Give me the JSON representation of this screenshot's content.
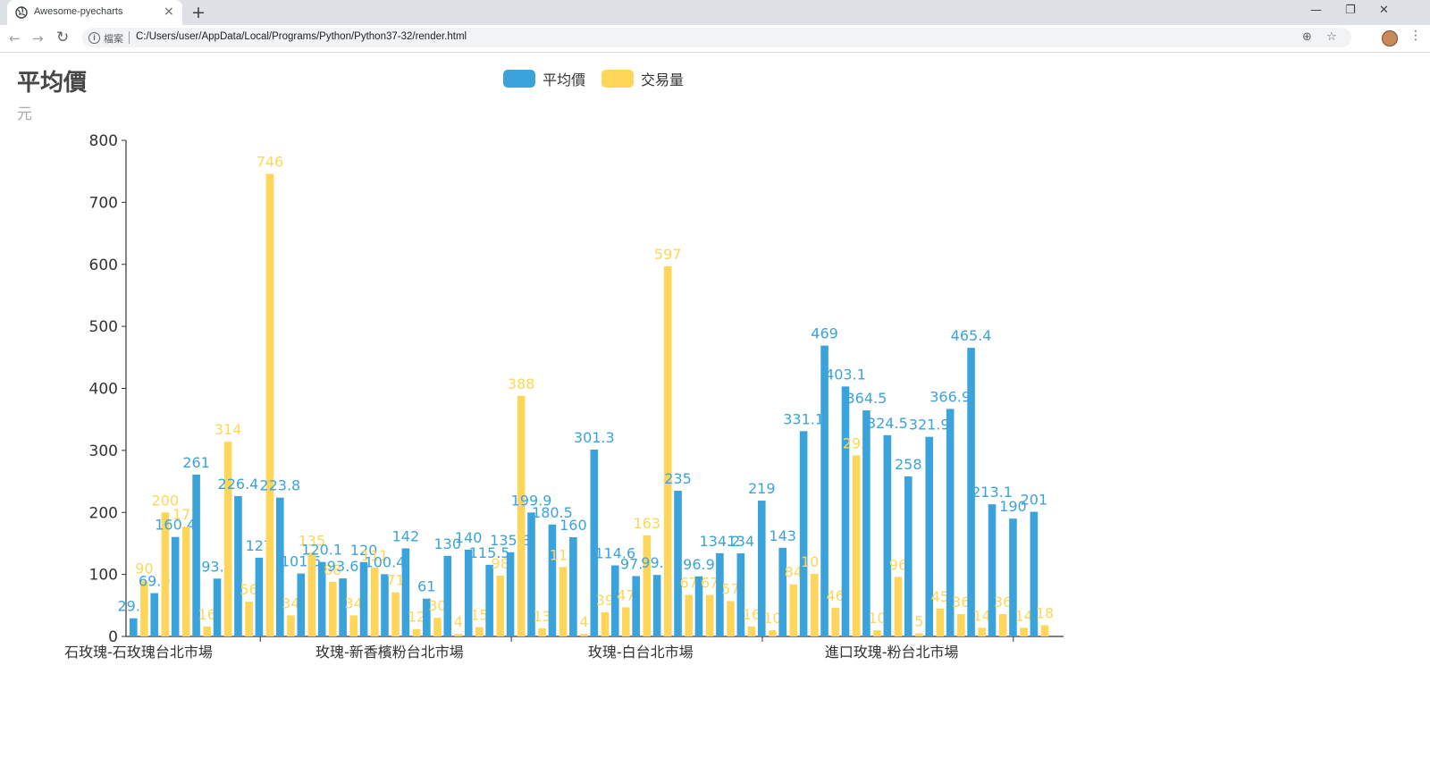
{
  "browser": {
    "tab_title": "Awesome-pyecharts",
    "tab_close": "×",
    "new_tab": "+",
    "minimize": "—",
    "restore": "❐",
    "close": "✕",
    "back": "←",
    "forward": "→",
    "reload": "↻",
    "info_icon": "i",
    "scheme_label": "檔案",
    "url": "C:/Users/user/AppData/Local/Programs/Python/Python37-32/render.html",
    "zoom_icon": "⊕",
    "bookmark_icon": "☆",
    "menu_icon": "⋮"
  },
  "colors": {
    "series1": "#3ba3dc",
    "series2": "#ffd65a",
    "axis": "#333333",
    "tick_text": "#333333"
  },
  "chart_data": {
    "type": "bar",
    "title": "平均價",
    "subtitle": "元",
    "ylim": [
      0,
      800
    ],
    "y_ticks": [
      0,
      100,
      200,
      300,
      400,
      500,
      600,
      700,
      800
    ],
    "legend_position": "top-center",
    "grid": false,
    "category_groups": [
      "石玫瑰-石玫瑰台北市場",
      "玫瑰-新香檳粉台北市場",
      "玫瑰-白台北市場",
      "進口玫瑰-粉台北市場"
    ],
    "series": [
      {
        "name": "平均價",
        "color": "#3ba3dc",
        "values": [
          29.3,
          69.9,
          160.4,
          261,
          93.3,
          226.4,
          127,
          223.8,
          101.5,
          120.1,
          93.6,
          120,
          100.4,
          142,
          61,
          130,
          140,
          115.5,
          135.8,
          199.9,
          180.5,
          160,
          301.3,
          114.6,
          97.3,
          99.2,
          235,
          96.9,
          134.2,
          134,
          219,
          143,
          331.1,
          469,
          403.1,
          364.5,
          324.5,
          258,
          321.9,
          366.9,
          465.4,
          213.1,
          190,
          201
        ]
      },
      {
        "name": "交易量",
        "color": "#ffd65a",
        "values": [
          90,
          200,
          177,
          16,
          314,
          56,
          746,
          34,
          135,
          88,
          34,
          111,
          71,
          12,
          30,
          4,
          15,
          98,
          388,
          13,
          112,
          4,
          39,
          47,
          163,
          597,
          67,
          67,
          57,
          16,
          10,
          84,
          101,
          46,
          292,
          10,
          96,
          5,
          45,
          36,
          14,
          36,
          14,
          18
        ]
      }
    ]
  }
}
